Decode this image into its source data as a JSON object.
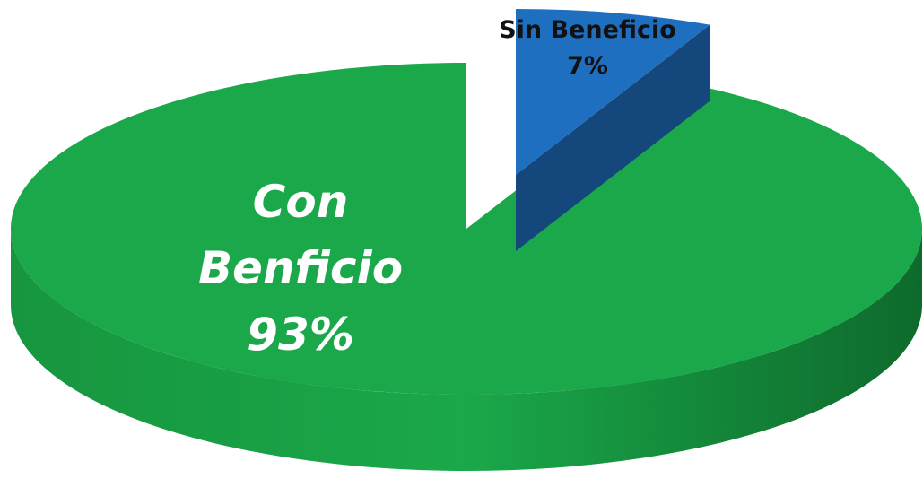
{
  "chart_data": {
    "type": "pie",
    "categories": [
      "Sin Beneficio",
      "Con Benficio"
    ],
    "values": [
      7,
      93
    ],
    "value_labels": [
      "7%",
      "93%"
    ],
    "colors": [
      "#1f6fc0",
      "#1aa84a"
    ],
    "3d": true
  }
}
